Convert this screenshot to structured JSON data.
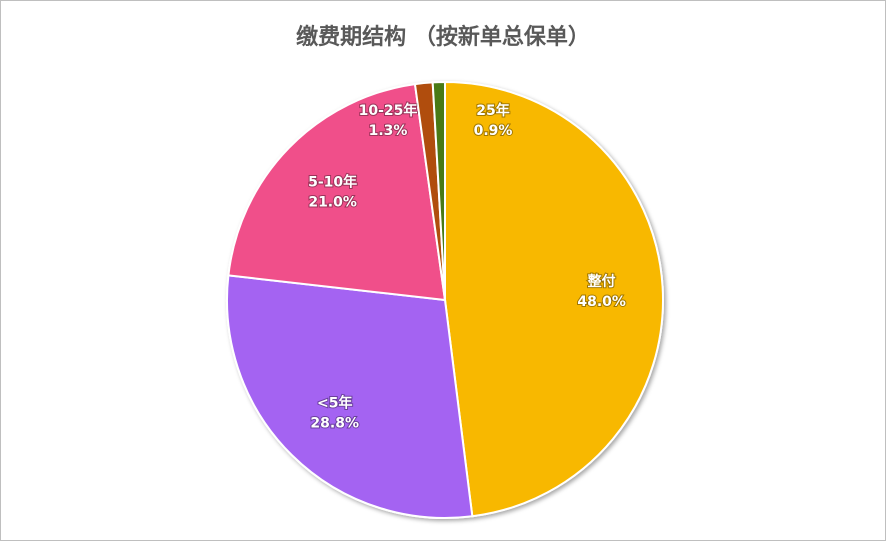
{
  "chart_data": {
    "type": "pie",
    "title": "缴费期结构 （按新单总保单）",
    "categories": [
      "整付",
      "<5年",
      "5-10年",
      "10-25年",
      "25年"
    ],
    "values": [
      48.0,
      28.8,
      21.0,
      1.3,
      0.9
    ],
    "value_labels": [
      "48.0%",
      "28.8%",
      "21.0%",
      "1.3%",
      "0.9%"
    ],
    "colors": [
      "#f8b800",
      "#a463f2",
      "#f0508a",
      "#b04e0f",
      "#4a7a12"
    ]
  }
}
